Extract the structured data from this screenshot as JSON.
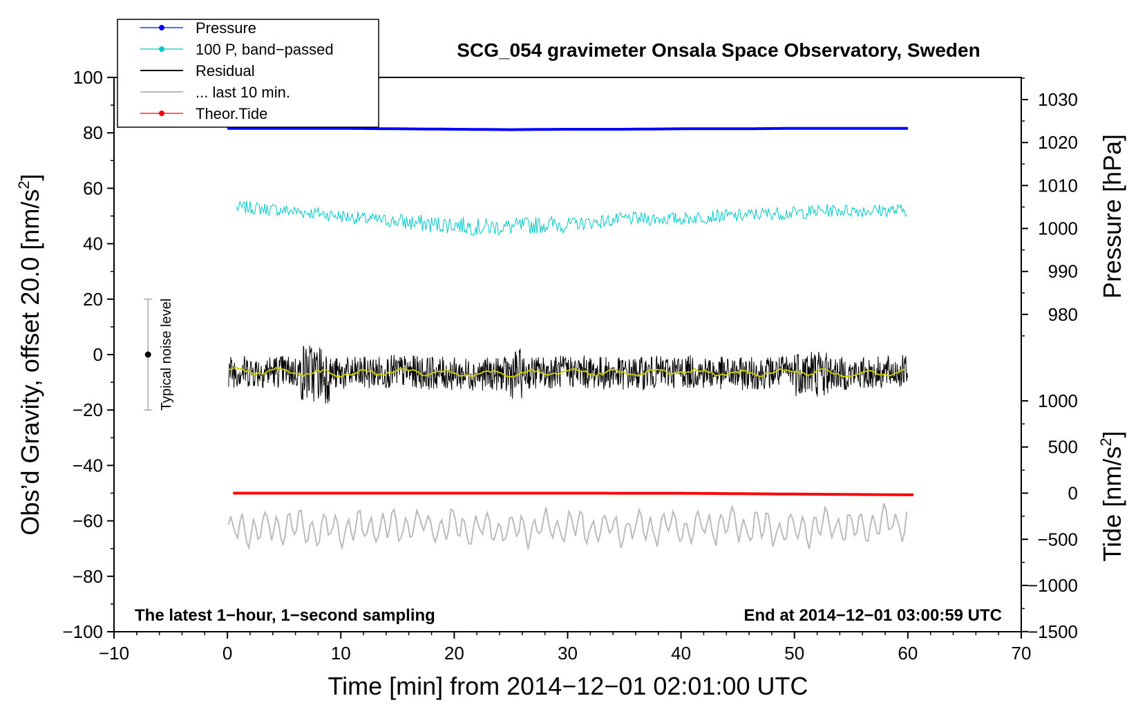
{
  "chart_data": {
    "type": "line",
    "title": "SCG_054 gravimeter Onsala Space Observatory, Sweden",
    "xlabel": "Time [min] from 2014−12−01 02:01:00 UTC",
    "ylabel_left": "Obs’d Gravity, offset 20.0 [nm/s",
    "ylabel_left_sup": "2",
    "ylabel_left_end": "]",
    "ylabel_right_top": "Pressure [hPa]",
    "ylabel_right_bottom": "Tide [nm/s",
    "ylabel_right_bottom_sup": "2",
    "ylabel_right_bottom_end": "]",
    "xlim": [
      -10,
      70
    ],
    "ylim_left": [
      -100,
      100
    ],
    "x_ticks": [
      "−10",
      "0",
      "10",
      "20",
      "30",
      "40",
      "50",
      "60",
      "70"
    ],
    "x_tick_values": [
      -10,
      0,
      10,
      20,
      30,
      40,
      50,
      60,
      70
    ],
    "y_ticks_left": [
      "100",
      "80",
      "60",
      "40",
      "20",
      "0",
      "−20",
      "−40",
      "−60",
      "−80",
      "−100"
    ],
    "y_tick_values_left": [
      100,
      80,
      60,
      40,
      20,
      0,
      -20,
      -40,
      -60,
      -80,
      -100
    ],
    "pressure_axis": {
      "ticks": [
        "1030",
        "1020",
        "1010",
        "1000",
        "990",
        "980"
      ],
      "tick_values": [
        1030,
        1020,
        1010,
        1000,
        990,
        980
      ],
      "left_equivalent_at_1030": 92,
      "left_per_hPa": 1.55
    },
    "tide_axis": {
      "ticks": [
        "1000",
        "500",
        "0",
        "−500",
        "−1000",
        "−1500"
      ],
      "tick_values": [
        1000,
        500,
        0,
        -500,
        -1000,
        -1500
      ],
      "left_equivalent_at_0": -50,
      "left_per_unit": 0.0333
    },
    "series": [
      {
        "name": "Pressure",
        "color": "#0000ff",
        "x": [
          0,
          5,
          10,
          15,
          20,
          25,
          30,
          35,
          40,
          45,
          50,
          55,
          60
        ],
        "values": [
          1023.3,
          1023.3,
          1023.3,
          1023.2,
          1023.1,
          1023.0,
          1023.1,
          1023.1,
          1023.2,
          1023.2,
          1023.3,
          1023.3,
          1023.3
        ],
        "unit": "hPa"
      },
      {
        "name": "100 P, band−passed",
        "color": "#00c8c8",
        "x": [
          0,
          2,
          5,
          8,
          10,
          12,
          15,
          18,
          20,
          22,
          25,
          28,
          30,
          33,
          35,
          38,
          40,
          43,
          45,
          48,
          50,
          53,
          55,
          58,
          60
        ],
        "values": [
          53,
          53,
          52,
          51,
          50,
          49,
          48,
          47,
          47,
          46,
          46,
          47,
          47,
          48,
          49,
          49,
          49,
          50,
          50,
          51,
          51,
          52,
          52,
          52,
          52
        ]
      },
      {
        "name": "Residual",
        "color": "#000000",
        "x": [
          0,
          5,
          10,
          15,
          20,
          25,
          30,
          35,
          40,
          45,
          50,
          55,
          60
        ],
        "values": [
          -6,
          -6,
          -7,
          -6,
          -7,
          -7,
          -6,
          -7,
          -6,
          -7,
          -6,
          -7,
          -6
        ]
      },
      {
        "name": "... last 10 min.",
        "color": "#bbbbbb",
        "x": [
          0,
          5,
          10,
          15,
          20,
          25,
          30,
          35,
          40,
          45,
          50,
          55,
          60
        ],
        "values": [
          -64,
          -62,
          -63,
          -62,
          -62,
          -63,
          -62,
          -63,
          -62,
          -62,
          -63,
          -62,
          -60
        ]
      },
      {
        "name": "Theor.Tide",
        "color": "#ff0000",
        "x": [
          0,
          10,
          20,
          30,
          40,
          50,
          60
        ],
        "values": [
          0,
          0,
          0,
          0,
          -1,
          -10,
          -18
        ],
        "unit": "nm/s2"
      }
    ],
    "residual_smoothed_color": "#cccc00",
    "noise_marker": {
      "label": "Typical noise level",
      "x": -7,
      "center": 0,
      "low": -20,
      "high": 20
    },
    "legend_position": "top-left",
    "grid": false
  },
  "annotations": {
    "bottom_left": "The latest 1−hour, 1−second sampling",
    "bottom_right": "End at 2014−12−01 03:00:59 UTC"
  }
}
